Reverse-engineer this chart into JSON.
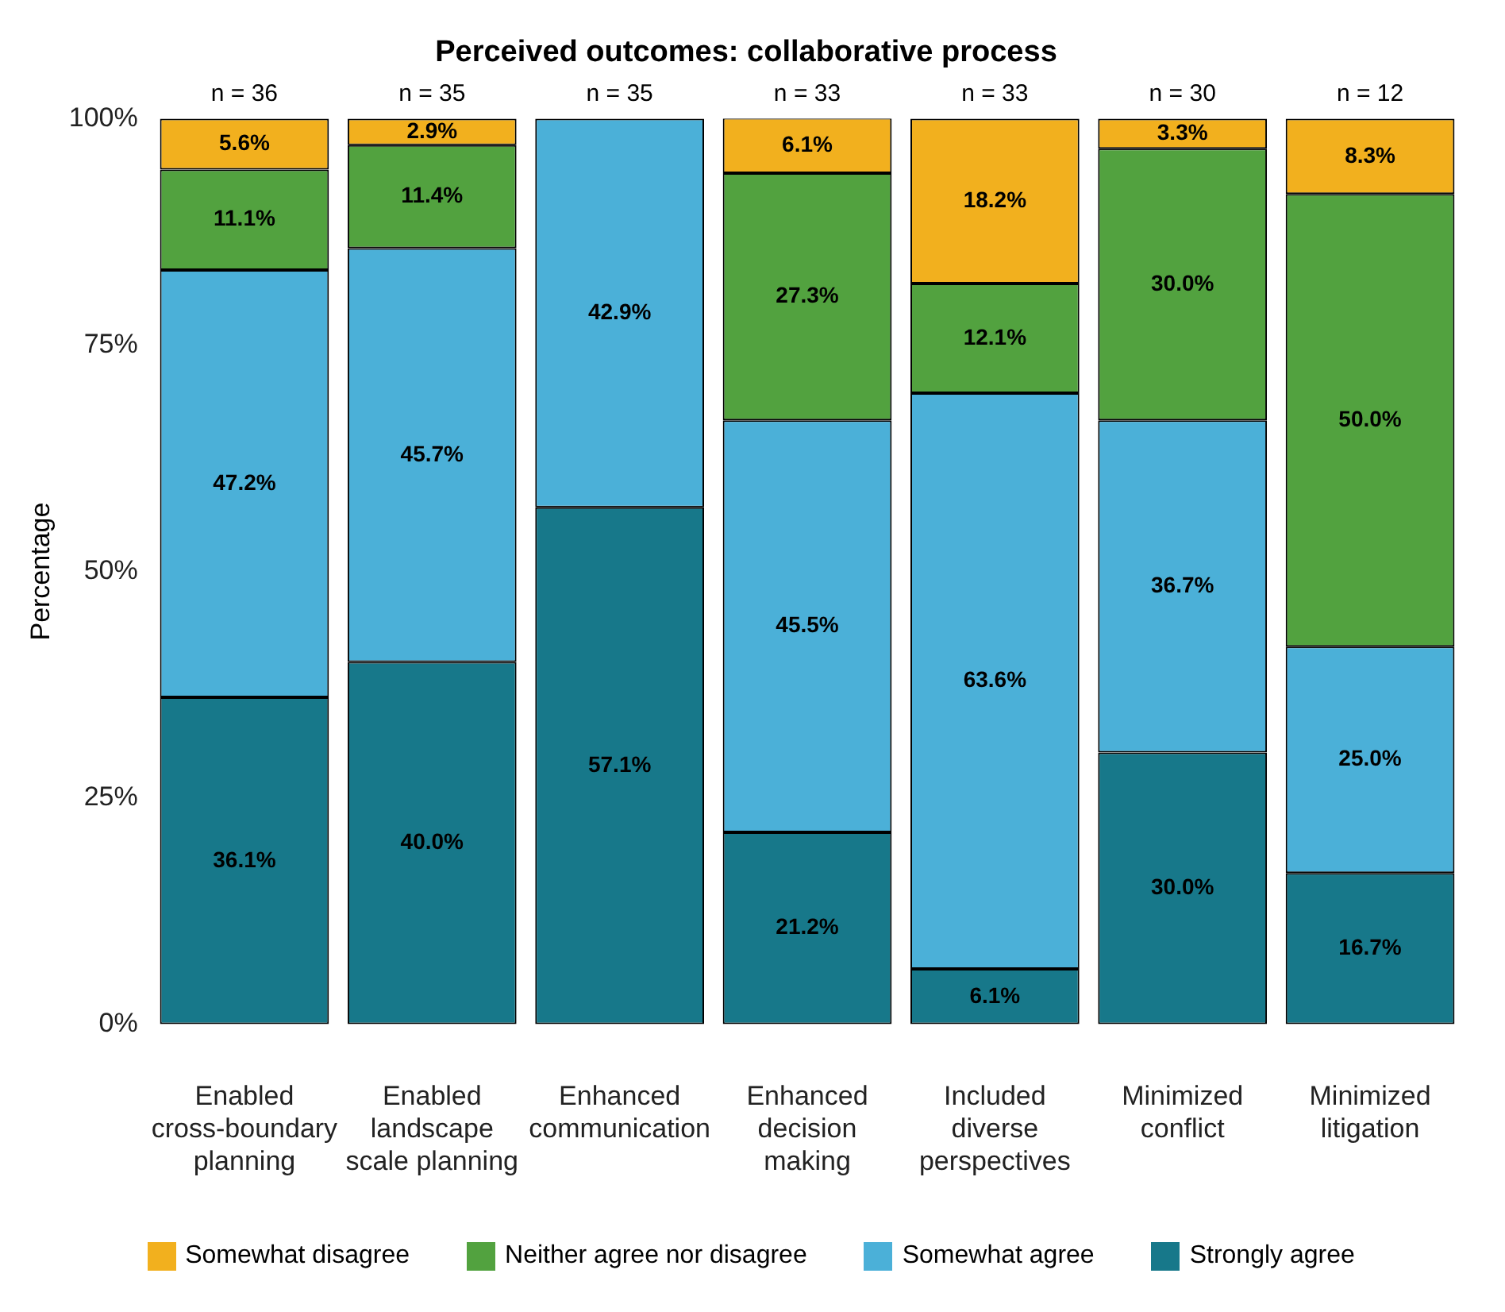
{
  "chart_data": {
    "type": "bar",
    "title": "Perceived outcomes: collaborative process",
    "ylabel": "Percentage",
    "categories": [
      "Enabled cross-boundary planning",
      "Enabled landscape scale planning",
      "Enhanced communication",
      "Enhanced decision making",
      "Included diverse perspectives",
      "Minimized conflict",
      "Minimized litigation"
    ],
    "stacked": true,
    "ylim": [
      0,
      100
    ],
    "yticks": [
      {
        "value": 0,
        "label": "0%"
      },
      {
        "value": 25,
        "label": "25%"
      },
      {
        "value": 50,
        "label": "50%"
      },
      {
        "value": 75,
        "label": "75%"
      },
      {
        "value": 100,
        "label": "100%"
      }
    ],
    "grid": false,
    "legend": "bottom",
    "series": [
      {
        "name": "Strongly agree",
        "color": "#17788a",
        "values": [
          36.1,
          40.0,
          57.1,
          21.2,
          6.1,
          30.0,
          16.7
        ],
        "value_labels": [
          "36.1%",
          "40.0%",
          "57.1%",
          "21.2%",
          "6.1%",
          "30.0%",
          "16.7%"
        ]
      },
      {
        "name": "Somewhat agree",
        "color": "#4bb0d8",
        "values": [
          47.2,
          45.7,
          42.9,
          45.5,
          63.6,
          36.7,
          25.0
        ],
        "value_labels": [
          "47.2%",
          "45.7%",
          "42.9%",
          "45.5%",
          "63.6%",
          "36.7%",
          "25.0%"
        ]
      },
      {
        "name": "Neither agree nor disagree",
        "color": "#52a23f",
        "values": [
          11.1,
          11.4,
          null,
          27.3,
          12.1,
          30.0,
          50.0
        ],
        "value_labels": [
          "11.1%",
          "11.4%",
          null,
          "27.3%",
          "12.1%",
          "30.0%",
          "50.0%"
        ]
      },
      {
        "name": "Somewhat disagree",
        "color": "#f2b01e",
        "values": [
          5.6,
          2.9,
          null,
          6.1,
          18.2,
          3.3,
          8.3
        ],
        "value_labels": [
          "5.6%",
          "2.9%",
          null,
          "6.1%",
          "18.2%",
          "3.3%",
          "8.3%"
        ]
      }
    ],
    "annotations": [
      "n = 36",
      "n = 35",
      "n = 35",
      "n = 33",
      "n = 33",
      "n = 30",
      "n = 12"
    ]
  }
}
